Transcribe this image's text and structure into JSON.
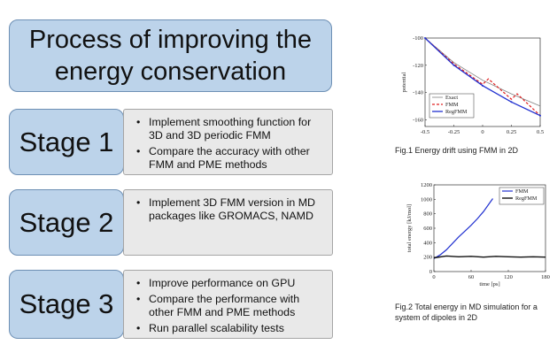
{
  "title": "Process of improving the energy conservation",
  "stages": [
    {
      "label": "Stage 1",
      "items": [
        "Implement smoothing function for 3D and 3D periodic  FMM",
        "Compare the accuracy with other FMM and PME methods"
      ]
    },
    {
      "label": "Stage 2",
      "items": [
        "Implement 3D FMM version in MD packages like GROMACS, NAMD"
      ]
    },
    {
      "label": "Stage 3",
      "items": [
        "Improve performance on GPU",
        "Compare the performance with other FMM and PME methods",
        "Run parallel scalability tests"
      ]
    }
  ],
  "figures": [
    {
      "caption": "Fig.1 Energy drift using FMM in 2D"
    },
    {
      "caption": "Fig.2 Total energy in MD simulation for a system of dipoles in 2D"
    }
  ],
  "chart_data": [
    {
      "type": "line",
      "ylabel": "potential",
      "xlim": [
        -0.5,
        0.5
      ],
      "ylim": [
        -165,
        -100
      ],
      "xticks": [
        "-0.5",
        "-0.25",
        "0",
        "0.25",
        "0.5"
      ],
      "yticks": [
        "-100",
        "-120",
        "-140",
        "-160"
      ],
      "legend": [
        "Exact",
        "FMM",
        "RegFMM"
      ],
      "colors": {
        "Exact": "#808080",
        "FMM": "#e02020",
        "RegFMM": "#2030d0"
      },
      "series": [
        {
          "name": "Exact",
          "x": [
            -0.5,
            -0.25,
            0,
            0.25,
            0.5
          ],
          "y": [
            -100,
            -118,
            -131,
            -141,
            -150
          ]
        },
        {
          "name": "FMM",
          "x": [
            -0.5,
            -0.25,
            0,
            0.05,
            0.25,
            0.3,
            0.5
          ],
          "y": [
            -100,
            -119,
            -134,
            -130,
            -145,
            -141,
            -157
          ]
        },
        {
          "name": "RegFMM",
          "x": [
            -0.5,
            -0.25,
            0,
            0.25,
            0.5
          ],
          "y": [
            -100,
            -120,
            -135,
            -147,
            -157
          ]
        }
      ]
    },
    {
      "type": "line",
      "xlabel": "time [ps]",
      "ylabel": "total energy [kJ/mol]",
      "xlim": [
        0,
        180
      ],
      "ylim": [
        0,
        1200
      ],
      "xticks": [
        "0",
        "60",
        "120",
        "180"
      ],
      "yticks": [
        "0",
        "200",
        "400",
        "600",
        "800",
        "1000",
        "1200"
      ],
      "legend": [
        "FMM",
        "RegFMM"
      ],
      "colors": {
        "FMM": "#2030d0",
        "RegFMM": "#111111"
      },
      "series": [
        {
          "name": "FMM",
          "x": [
            0,
            10,
            20,
            30,
            40,
            50,
            60,
            70,
            80,
            90,
            95
          ],
          "y": [
            180,
            230,
            300,
            390,
            480,
            560,
            640,
            730,
            830,
            950,
            1010
          ]
        },
        {
          "name": "RegFMM",
          "x": [
            0,
            20,
            40,
            60,
            80,
            100,
            120,
            140,
            160,
            180
          ],
          "y": [
            190,
            215,
            205,
            210,
            200,
            210,
            205,
            200,
            205,
            200
          ]
        }
      ]
    }
  ]
}
